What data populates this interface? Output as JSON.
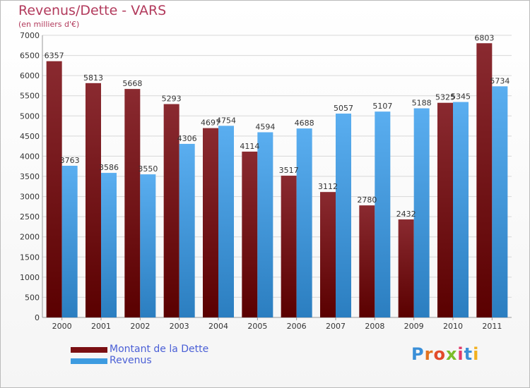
{
  "title": "Revenus/Dette - VARS",
  "subtitle": "(en milliers d'€)",
  "logo": "Proxiti",
  "colors": {
    "dette": "#7a0f12",
    "revenus": "#3d9be0",
    "title": "#b23a5c",
    "legend_text": "#4a5fd6"
  },
  "chart_data": {
    "type": "bar",
    "title": "Revenus/Dette - VARS",
    "subtitle": "(en milliers d'€)",
    "categories": [
      "2000",
      "2001",
      "2002",
      "2003",
      "2004",
      "2005",
      "2006",
      "2007",
      "2008",
      "2009",
      "2010",
      "2011"
    ],
    "series": [
      {
        "name": "Montant de la Dette",
        "values": [
          6357,
          5813,
          5668,
          5293,
          4697,
          4114,
          3517,
          3112,
          2780,
          2432,
          5325,
          6803
        ]
      },
      {
        "name": "Revenus",
        "values": [
          3763,
          3586,
          3550,
          4306,
          4754,
          4594,
          4688,
          5057,
          5107,
          5188,
          5345,
          5734
        ]
      }
    ],
    "y_ticks": [
      0,
      500,
      1000,
      1500,
      2000,
      2500,
      3000,
      3500,
      4000,
      4500,
      5000,
      5500,
      6000,
      6500,
      7000
    ],
    "ylim": [
      0,
      7000
    ],
    "grid": true,
    "legend_position": "bottom-left"
  }
}
